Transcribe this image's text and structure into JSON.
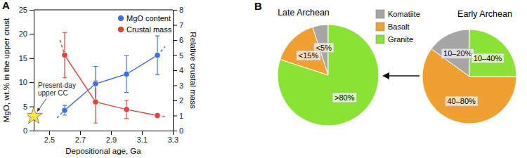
{
  "chart_data": [
    {
      "type": "line",
      "panel_label": "A",
      "x_label": "Depositional age, Ga",
      "y_label": "MgO, wt.% in the upper crust",
      "y2_label": "Relative crustal mass",
      "xlim": [
        2.4,
        3.3
      ],
      "xticks": [
        2.5,
        2.7,
        2.9,
        3.1,
        3.3
      ],
      "ylim": [
        0,
        25
      ],
      "yticks": [
        0,
        5,
        10,
        15,
        20,
        25
      ],
      "y2lim": [
        0,
        8
      ],
      "y2ticks": [
        0,
        1,
        2,
        3,
        4,
        5,
        6,
        7,
        8
      ],
      "legend": "upper right",
      "series": [
        {
          "name": "MgO content",
          "color": "#3f6fd8",
          "marker": "circle",
          "line_style": "solid",
          "x": [
            2.6,
            2.8,
            3.0,
            3.2
          ],
          "values": [
            4.2,
            9.7,
            11.7,
            15.6
          ],
          "errors": [
            1.0,
            3.6,
            3.8,
            4.0
          ]
        },
        {
          "name": "Crustal mass",
          "color": "#e0423a",
          "marker": "circle",
          "line_style": "solid",
          "axis": "y2",
          "x": [
            2.6,
            2.8,
            3.0,
            3.2
          ],
          "values": [
            5.0,
            1.9,
            1.4,
            1.0
          ],
          "errors": [
            1.5,
            1.4,
            0.6,
            0.1
          ]
        },
        {
          "color": "#3f6fd8",
          "line_style": "dashed",
          "x": [
            2.55,
            2.6
          ],
          "values": [
            2.6,
            4.2
          ]
        },
        {
          "color": "#3f6fd8",
          "line_style": "dashed",
          "x": [
            3.2,
            3.25
          ],
          "values": [
            15.6,
            17.4
          ]
        },
        {
          "color": "#e0423a",
          "line_style": "dashed",
          "axis": "y2",
          "x": [
            2.57,
            2.6
          ],
          "values": [
            6.0,
            5.0
          ]
        },
        {
          "color": "#e0423a",
          "line_style": "dashed",
          "axis": "y2",
          "x": [
            3.2,
            3.26
          ],
          "values": [
            1.0,
            0.9
          ]
        },
        {
          "type": "scatter",
          "color": "#f7e34b",
          "marker": "star",
          "x": [
            2.4
          ],
          "values": [
            3.0
          ]
        }
      ],
      "annotations": [
        {
          "text": "Present-day upper CC",
          "x": 2.4,
          "y": 3.0
        }
      ]
    },
    {
      "type": "pie",
      "panel_label": "B",
      "title": "Late Archean",
      "categories": [
        "Komatiite",
        "Basalt",
        "Granite"
      ],
      "values": [
        5,
        15,
        80
      ],
      "value_labels": [
        "<5%",
        "<15%",
        ">80%"
      ],
      "colors": [
        "#a6a6a6",
        "#f0a030",
        "#8ae234"
      ],
      "data_labels": true,
      "legend": "upper right"
    },
    {
      "type": "pie",
      "title": "Early Archean",
      "categories": [
        "Komatiite",
        "Basalt",
        "Granite"
      ],
      "values": [
        15,
        60,
        25
      ],
      "value_labels": [
        "10–20%",
        "40–80%",
        "10–40%"
      ],
      "colors": [
        "#a6a6a6",
        "#f0a030",
        "#8ae234"
      ],
      "data_labels": true
    }
  ]
}
